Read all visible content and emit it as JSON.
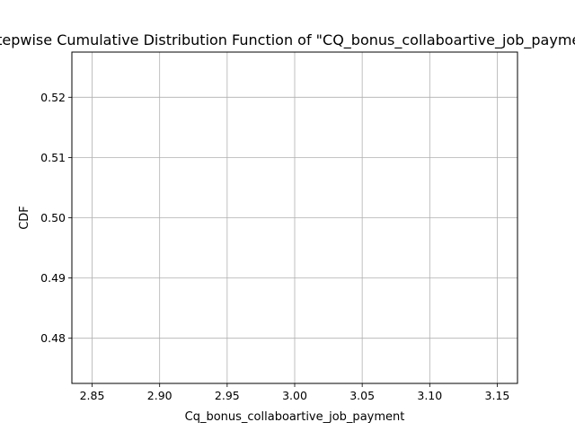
{
  "chart_data": {
    "type": "line",
    "title": "Stepwise Cumulative Distribution Function of \"CQ_bonus_collaboartive_job_payment\"",
    "xlabel": "Cq_bonus_collaboartive_job_payment",
    "ylabel": "CDF",
    "xlim": [
      2.835,
      3.165
    ],
    "ylim": [
      0.4725,
      0.5275
    ],
    "xticks": [
      2.85,
      2.9,
      2.95,
      3.0,
      3.05,
      3.1,
      3.15
    ],
    "xtick_labels": [
      "2.85",
      "2.90",
      "2.95",
      "3.00",
      "3.05",
      "3.10",
      "3.15"
    ],
    "yticks": [
      0.48,
      0.49,
      0.5,
      0.51,
      0.52
    ],
    "ytick_labels": [
      "0.48",
      "0.49",
      "0.50",
      "0.51",
      "0.52"
    ],
    "grid": true,
    "series": []
  }
}
